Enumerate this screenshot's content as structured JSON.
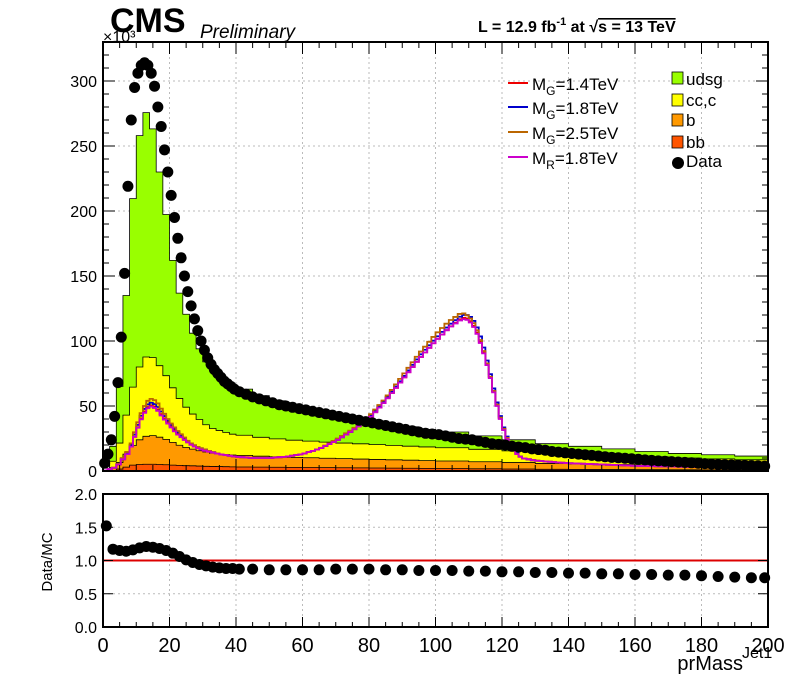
{
  "header": {
    "experiment": "CMS",
    "status": "Preliminary",
    "lumi_prefix": "L = 12.9 fb",
    "lumi_exp": "-1",
    "lumi_mid": " at ",
    "sqrt_s": "s = 13 TeV"
  },
  "colors": {
    "udsg": "#99ff00",
    "ccc": "#ffff00",
    "b": "#ff9900",
    "bb": "#ff5500",
    "data": "#000000",
    "mg14": "#ee0000",
    "mg18": "#0000cc",
    "mg25": "#bb6600",
    "mr18": "#cc00cc",
    "ratio_line": "#dd0000"
  },
  "chart_data": [
    {
      "type": "area",
      "xlabel": "prMass",
      "xlabel_sup": "Jet1",
      "ylabel": "",
      "y_multiplier": "×10³",
      "xlim": [
        0,
        200
      ],
      "ylim": [
        0,
        330
      ],
      "grid": true,
      "legend_position": "top-right",
      "x_ticks": [
        "0",
        "20",
        "40",
        "60",
        "80",
        "100",
        "120",
        "140",
        "160",
        "180",
        "200"
      ],
      "y_ticks": [
        "0",
        "50",
        "100",
        "150",
        "200",
        "250",
        "300"
      ],
      "stack_x": [
        0,
        2,
        4,
        6,
        8,
        10,
        12,
        14,
        16,
        18,
        20,
        22,
        24,
        26,
        28,
        30,
        32,
        34,
        36,
        38,
        40,
        45,
        50,
        55,
        60,
        65,
        70,
        75,
        80,
        85,
        90,
        95,
        100,
        110,
        120,
        130,
        140,
        150,
        160,
        170,
        180,
        190,
        200
      ],
      "stack": [
        {
          "name": "bb",
          "color_key": "bb",
          "legend": "bb",
          "values": [
            0,
            0.5,
            1.5,
            3,
            4.5,
            5,
            5.2,
            5.2,
            5,
            4.8,
            4.5,
            4.3,
            4.1,
            4,
            3.8,
            3.6,
            3.5,
            3.4,
            3.3,
            3.2,
            3.1,
            3,
            2.9,
            2.8,
            2.7,
            2.6,
            2.5,
            2.4,
            2.3,
            2.2,
            2.1,
            2,
            1.9,
            1.7,
            1.5,
            1.3,
            1.2,
            1.1,
            1,
            0.9,
            0.8,
            0.7,
            0.6
          ]
        },
        {
          "name": "b",
          "color_key": "b",
          "legend": "b",
          "values": [
            0,
            2,
            5,
            10,
            15,
            19,
            21.5,
            22,
            21,
            19.5,
            17.5,
            15.5,
            14,
            12.8,
            11.8,
            11,
            10.2,
            9.8,
            9.4,
            9.1,
            8.9,
            8.4,
            8,
            7.7,
            7.5,
            7.2,
            7,
            6.8,
            6.6,
            6.4,
            6.2,
            6,
            5.8,
            5.4,
            5,
            4.5,
            4.2,
            3.9,
            3.6,
            3.3,
            3.1,
            2.9,
            2.7
          ]
        },
        {
          "name": "cc,c",
          "color_key": "ccc",
          "legend": "cc,c",
          "values": [
            0,
            5,
            15,
            30,
            45,
            56,
            61,
            60,
            55,
            49,
            42,
            36,
            31,
            27,
            24,
            21,
            19,
            18,
            17,
            16,
            15.5,
            14.5,
            13.8,
            13.2,
            12.8,
            12.4,
            12,
            11.7,
            11.4,
            11.1,
            10.8,
            10.5,
            10.2,
            9.6,
            9,
            8.2,
            7.5,
            6.9,
            6.3,
            5.8,
            5.4,
            5,
            4.7
          ]
        },
        {
          "name": "udsg",
          "color_key": "udsg",
          "legend": "udsg",
          "values": [
            0,
            11.5,
            43.5,
            92,
            145,
            178,
            188,
            176,
            149,
            124,
            98,
            81,
            71.5,
            62.2,
            54.4,
            48.4,
            44.3,
            40.8,
            38.3,
            36.7,
            35.5,
            32.1,
            29.3,
            26.3,
            24,
            21.8,
            20.5,
            19.1,
            17.7,
            16.3,
            14.9,
            13.5,
            12.1,
            10.3,
            8.5,
            7,
            6.1,
            5.1,
            4.1,
            3.5,
            3.2,
            2.9,
            2.5
          ]
        }
      ],
      "data_points": {
        "name": "Data",
        "color_key": "data",
        "x": [
          0.5,
          1.5,
          2.5,
          3.5,
          4.5,
          5.5,
          6.5,
          7.5,
          8.5,
          9.5,
          10.5,
          11.5,
          12.5,
          13.5,
          14.5,
          15.5,
          16.5,
          17.5,
          18.5,
          19.5,
          20.5,
          21.5,
          22.5,
          23.5,
          24.5,
          25.5,
          26.5,
          27.5,
          28.5,
          29.5,
          30.5,
          31.5,
          32.5,
          33.5,
          34.5,
          35.5,
          36.5,
          37.5,
          38.5,
          39.5,
          41,
          43,
          45,
          47,
          49,
          51,
          53,
          55,
          57,
          59,
          61,
          63,
          65,
          67,
          69,
          71,
          73,
          75,
          77,
          79,
          81,
          83,
          85,
          87,
          89,
          91,
          93,
          95,
          97,
          99,
          101,
          103,
          105,
          107,
          109,
          111,
          113,
          115,
          117,
          119,
          121,
          123,
          125,
          127,
          129,
          131,
          133,
          135,
          137,
          139,
          141,
          143,
          145,
          147,
          149,
          151,
          153,
          155,
          157,
          159,
          161,
          163,
          165,
          167,
          169,
          171,
          173,
          175,
          177,
          179,
          181,
          183,
          185,
          187,
          189,
          191,
          193,
          195,
          197,
          199
        ],
        "y": [
          6,
          13,
          24,
          42,
          68,
          103,
          152,
          219,
          270,
          295,
          306,
          312,
          314,
          312,
          306,
          296,
          280,
          265,
          247,
          230,
          212,
          195,
          179,
          164,
          150,
          138,
          127,
          117,
          108,
          100,
          93,
          87,
          82,
          78,
          75,
          72,
          69,
          67,
          65,
          63,
          61,
          59,
          57,
          55.5,
          54,
          52.5,
          51,
          50,
          49,
          48,
          47,
          46,
          45,
          44,
          43,
          42,
          41,
          40,
          39,
          38,
          37,
          36,
          35,
          34,
          33,
          32,
          31,
          30,
          29,
          28.5,
          28,
          27,
          26,
          25,
          24.5,
          24,
          23,
          22,
          21,
          20.5,
          20,
          19,
          18.5,
          18,
          17,
          16.5,
          16,
          15,
          14.5,
          14,
          13.5,
          13,
          12.5,
          12,
          11.5,
          11,
          10.5,
          10.2,
          9.8,
          9.4,
          9,
          8.6,
          8.2,
          7.8,
          7.5,
          7.2,
          6.9,
          6.6,
          6.3,
          6,
          5.7,
          5.4,
          5.1,
          4.9,
          4.7,
          4.5,
          4.3,
          4.1,
          3.9,
          3.7
        ]
      },
      "signals": [
        {
          "name": "M_G=1.4TeV",
          "color_key": "mg14",
          "label_main": "M",
          "label_sub": "G",
          "label_rest": "=1.4TeV",
          "x": [
            0,
            4,
            8,
            10,
            12,
            14,
            16,
            18,
            20,
            22,
            24,
            26,
            28,
            30,
            35,
            40,
            45,
            50,
            55,
            60,
            65,
            70,
            75,
            80,
            85,
            90,
            95,
            100,
            104,
            108,
            110,
            112,
            114,
            116,
            118,
            120,
            122,
            124,
            126,
            130,
            140,
            150,
            160,
            180,
            200
          ],
          "y": [
            0,
            3,
            15,
            30,
            44,
            51,
            49,
            42,
            36,
            30,
            25,
            21,
            18,
            16,
            13,
            11,
            10,
            10,
            11,
            13,
            17,
            23,
            31,
            40,
            54,
            70,
            86,
            100,
            110,
            118,
            117,
            110,
            96,
            78,
            56,
            36,
            22,
            14,
            10,
            8,
            6,
            5,
            4,
            3,
            2
          ]
        },
        {
          "name": "M_G=1.8TeV",
          "color_key": "mg18",
          "label_main": "M",
          "label_sub": "G",
          "label_rest": "=1.8TeV",
          "x": [
            0,
            4,
            8,
            10,
            12,
            14,
            16,
            18,
            20,
            22,
            24,
            26,
            28,
            30,
            35,
            40,
            45,
            50,
            55,
            60,
            65,
            70,
            75,
            80,
            85,
            90,
            95,
            100,
            104,
            108,
            110,
            112,
            114,
            116,
            118,
            120,
            122,
            124,
            126,
            130,
            140,
            150,
            160,
            180,
            200
          ],
          "y": [
            0,
            3,
            16,
            32,
            46,
            53,
            51,
            44,
            37,
            31,
            26,
            22,
            19,
            17,
            13,
            11,
            10,
            10,
            11,
            13,
            17,
            23,
            31,
            41,
            55,
            71,
            88,
            102,
            112,
            120,
            120,
            114,
            100,
            80,
            58,
            37,
            23,
            15,
            10,
            8,
            6,
            5,
            4,
            3,
            2
          ]
        },
        {
          "name": "M_G=2.5TeV",
          "color_key": "mg25",
          "label_main": "M",
          "label_sub": "G",
          "label_rest": "=2.5TeV",
          "x": [
            0,
            4,
            8,
            10,
            12,
            14,
            16,
            18,
            20,
            22,
            24,
            26,
            28,
            30,
            35,
            40,
            45,
            50,
            55,
            60,
            65,
            70,
            75,
            80,
            85,
            90,
            95,
            100,
            104,
            108,
            110,
            112,
            114,
            116,
            118,
            120,
            122,
            124,
            126,
            130,
            140,
            150,
            160,
            180,
            200
          ],
          "y": [
            0,
            3,
            17,
            34,
            48,
            56,
            54,
            46,
            38,
            32,
            27,
            22,
            19,
            17,
            13,
            11,
            10,
            10,
            11,
            13,
            17,
            24,
            32,
            42,
            56,
            73,
            90,
            105,
            115,
            122,
            119,
            112,
            97,
            78,
            56,
            36,
            22,
            14,
            10,
            8,
            6,
            5,
            4,
            3,
            2
          ]
        },
        {
          "name": "M_R=1.8TeV",
          "color_key": "mr18",
          "label_main": "M",
          "label_sub": "R",
          "label_rest": "=1.8TeV",
          "x": [
            0,
            4,
            8,
            10,
            12,
            14,
            16,
            18,
            20,
            22,
            24,
            26,
            28,
            30,
            35,
            40,
            45,
            50,
            55,
            60,
            65,
            70,
            75,
            80,
            85,
            90,
            95,
            100,
            104,
            108,
            110,
            112,
            114,
            116,
            118,
            120,
            122,
            124,
            126,
            130,
            140,
            150,
            160,
            180,
            200
          ],
          "y": [
            0,
            3,
            15,
            30,
            43,
            50,
            48,
            41,
            35,
            29,
            25,
            21,
            18,
            16,
            13,
            11,
            10,
            10,
            11,
            13,
            17,
            23,
            31,
            40,
            54,
            70,
            86,
            100,
            110,
            117,
            116,
            109,
            95,
            77,
            55,
            35,
            21,
            14,
            10,
            8,
            6,
            5,
            4,
            3,
            2
          ]
        }
      ]
    },
    {
      "type": "scatter",
      "ylabel": "Data/MC",
      "xlim": [
        0,
        200
      ],
      "ylim": [
        0,
        2
      ],
      "grid": true,
      "y_ticks": [
        "0.0",
        "0.5",
        "1.0",
        "1.5",
        "2.0"
      ],
      "reference_line": 1.0,
      "x": [
        1,
        3,
        5,
        7,
        9,
        11,
        13,
        15,
        17,
        19,
        21,
        23,
        25,
        27,
        29,
        31,
        33,
        35,
        37,
        39,
        41,
        45,
        50,
        55,
        60,
        65,
        70,
        75,
        80,
        85,
        90,
        95,
        100,
        105,
        110,
        115,
        120,
        125,
        130,
        135,
        140,
        145,
        150,
        155,
        160,
        165,
        170,
        175,
        180,
        185,
        190,
        195,
        199
      ],
      "y": [
        1.52,
        1.17,
        1.15,
        1.14,
        1.16,
        1.19,
        1.21,
        1.2,
        1.18,
        1.15,
        1.11,
        1.06,
        1.01,
        0.97,
        0.94,
        0.92,
        0.9,
        0.89,
        0.88,
        0.88,
        0.87,
        0.87,
        0.86,
        0.86,
        0.86,
        0.86,
        0.87,
        0.87,
        0.87,
        0.86,
        0.86,
        0.85,
        0.85,
        0.85,
        0.84,
        0.84,
        0.83,
        0.83,
        0.82,
        0.82,
        0.81,
        0.81,
        0.8,
        0.8,
        0.79,
        0.79,
        0.78,
        0.78,
        0.77,
        0.76,
        0.75,
        0.74,
        0.74
      ]
    }
  ]
}
